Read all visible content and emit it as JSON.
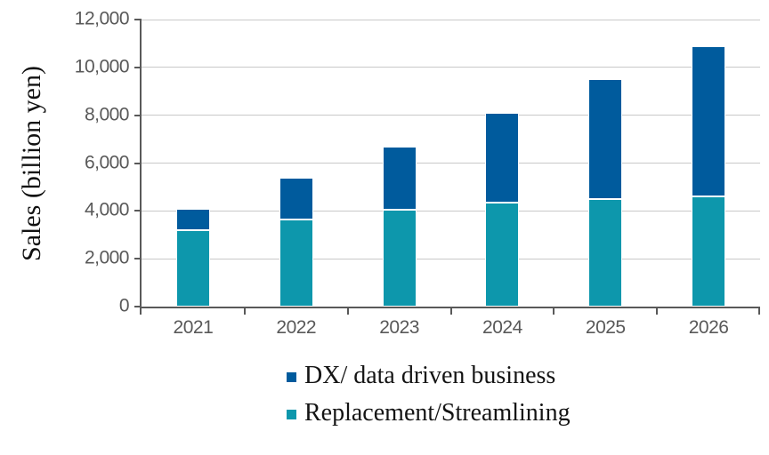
{
  "chart_data": {
    "type": "bar",
    "stacked": true,
    "title": "",
    "xlabel": "",
    "ylabel": "Sales (billion yen)",
    "ylim": [
      0,
      12000
    ],
    "grid": true,
    "y_ticks": [
      {
        "value": 0,
        "label": "0"
      },
      {
        "value": 2000,
        "label": "2,000"
      },
      {
        "value": 4000,
        "label": "4,000"
      },
      {
        "value": 6000,
        "label": "6,000"
      },
      {
        "value": 8000,
        "label": "8,000"
      },
      {
        "value": 10000,
        "label": "10,000"
      },
      {
        "value": 12000,
        "label": "12,000"
      }
    ],
    "categories": [
      "2021",
      "2022",
      "2023",
      "2024",
      "2025",
      "2026"
    ],
    "series": [
      {
        "name": "Replacement/Streamlining",
        "key": "replacement-streamlining",
        "color": "#0D97AC",
        "values": [
          3200,
          3650,
          4050,
          4350,
          4500,
          4600
        ]
      },
      {
        "name": "DX/ data driven business",
        "key": "dx-data-driven-business",
        "color": "#005B9D",
        "values": [
          900,
          1750,
          2650,
          3750,
          5000,
          6300
        ]
      }
    ],
    "totals": [
      4100,
      5400,
      6700,
      8100,
      9500,
      10900
    ],
    "legend": {
      "position": "bottom",
      "items": [
        {
          "label": "DX/ data driven business",
          "color": "#005B9D",
          "key": "dx-data-driven-business"
        },
        {
          "label": "Replacement/Streamlining",
          "color": "#0D97AC",
          "key": "replacement-streamlining"
        }
      ]
    }
  },
  "colors": {
    "axis": "#595959",
    "gridline": "#C9C9C9",
    "tick_text": "#595959",
    "label_text": "#141414",
    "background": "#FFFFFF"
  }
}
